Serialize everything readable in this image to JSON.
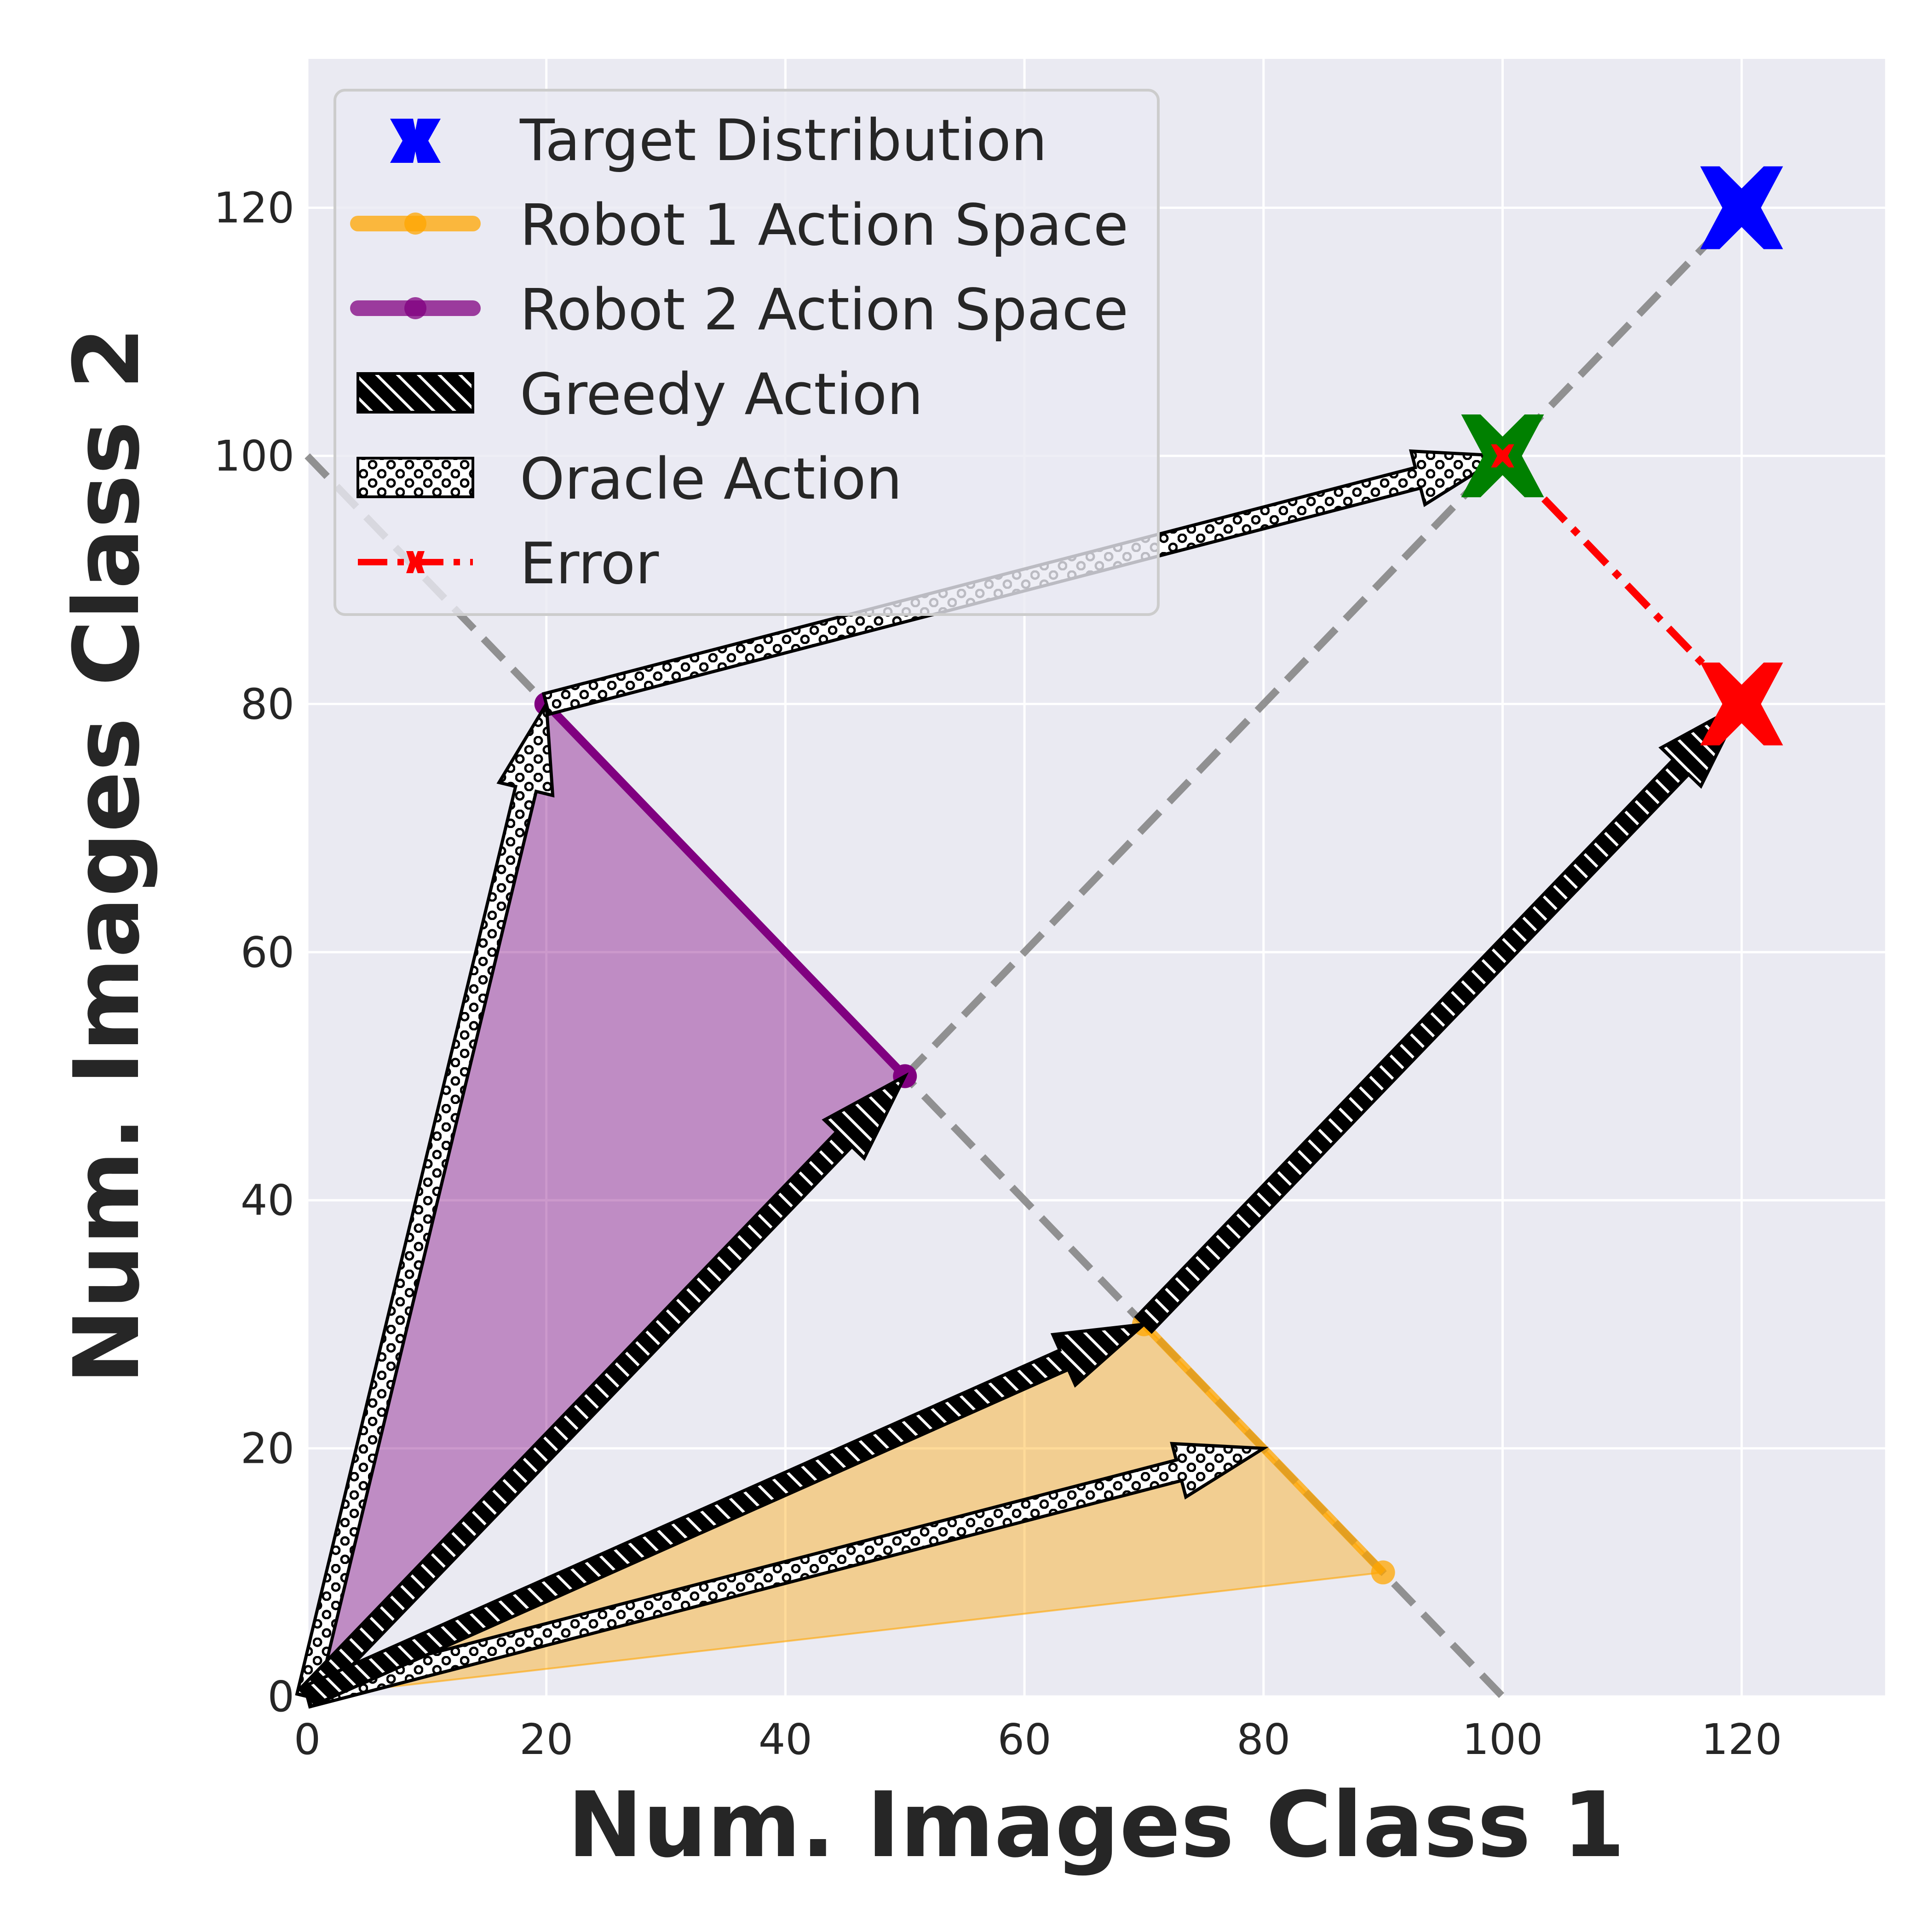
{
  "chart_data": {
    "type": "scatter",
    "xlabel": "Num. Images Class 1",
    "ylabel": "Num. Images Class 2",
    "xlim": [
      0,
      132
    ],
    "ylim": [
      0,
      132
    ],
    "x_ticks": [
      0,
      20,
      40,
      60,
      80,
      100,
      120
    ],
    "y_ticks": [
      0,
      20,
      40,
      60,
      80,
      100,
      120
    ],
    "grid": true,
    "legend_position": "top-left",
    "colors": {
      "background": "#eaeaf2",
      "target": "#0000ff",
      "robot1": "#ffa500",
      "robot2": "#800080",
      "error": "#ff0000",
      "oracle_result": "#008000",
      "guide": "#808080"
    },
    "legend": [
      {
        "key": "target",
        "label": "Target Distribution"
      },
      {
        "key": "robot1",
        "label": "Robot 1 Action Space"
      },
      {
        "key": "robot2",
        "label": "Robot 2 Action Space"
      },
      {
        "key": "greedy",
        "label": "Greedy Action"
      },
      {
        "key": "oracle",
        "label": "Oracle Action"
      },
      {
        "key": "error",
        "label": "Error"
      }
    ],
    "guide_lines": [
      {
        "name": "sum-100",
        "points": [
          [
            0,
            100
          ],
          [
            100,
            0
          ]
        ]
      },
      {
        "name": "diagonal",
        "points": [
          [
            50,
            50
          ],
          [
            120,
            120
          ]
        ]
      }
    ],
    "target_point": [
      120,
      120
    ],
    "robot1_action_space": {
      "segment": [
        [
          70,
          30
        ],
        [
          90,
          10
        ]
      ]
    },
    "robot2_action_space": {
      "segment": [
        [
          20,
          80
        ],
        [
          50,
          50
        ]
      ]
    },
    "greedy_actions": [
      {
        "from": [
          0,
          0
        ],
        "to": [
          50,
          50
        ]
      },
      {
        "from": [
          0,
          0
        ],
        "to": [
          70,
          30
        ]
      },
      {
        "from": [
          70,
          30
        ],
        "to": [
          120,
          80
        ]
      }
    ],
    "oracle_actions": [
      {
        "from": [
          0,
          0
        ],
        "to": [
          20,
          80
        ]
      },
      {
        "from": [
          0,
          0
        ],
        "to": [
          80,
          20
        ]
      },
      {
        "from": [
          20,
          80
        ],
        "to": [
          100,
          100
        ]
      }
    ],
    "greedy_result": [
      120,
      80
    ],
    "oracle_result": [
      100,
      100
    ],
    "error_line": [
      [
        100,
        100
      ],
      [
        120,
        80
      ]
    ]
  }
}
